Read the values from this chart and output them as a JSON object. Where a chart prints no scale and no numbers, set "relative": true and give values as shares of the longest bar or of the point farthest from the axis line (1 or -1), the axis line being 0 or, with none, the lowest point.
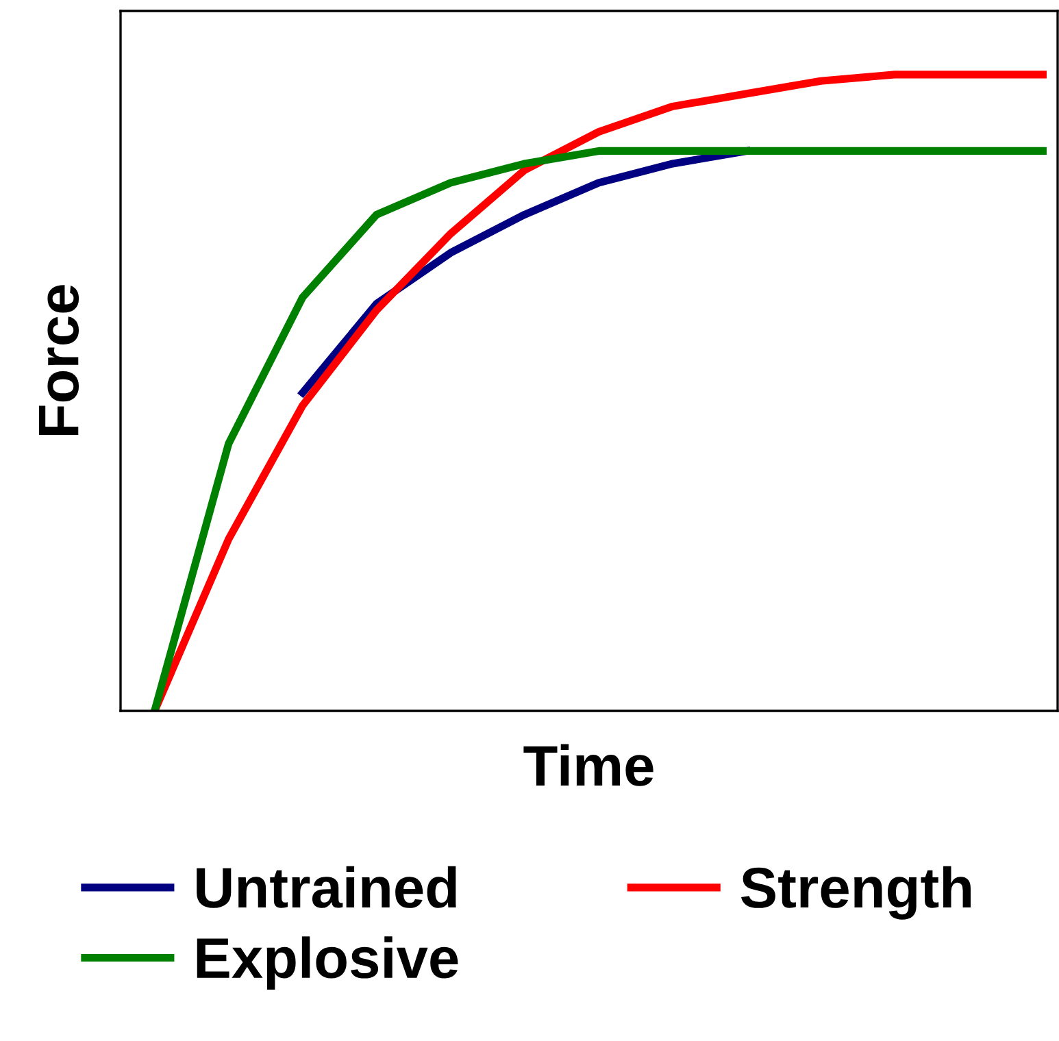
{
  "chart_data": {
    "type": "line",
    "xlabel": "Time",
    "ylabel": "Force",
    "relative": true,
    "grid": false,
    "legend": "bottom",
    "marker": "none",
    "line_style": "solid",
    "categories": [
      null,
      null,
      null,
      null,
      null,
      null,
      null,
      null,
      null,
      null,
      null,
      null,
      null
    ],
    "series": [
      {
        "name": "Untrained",
        "color": "#000080",
        "values": [
          null,
          null,
          0.5,
          0.64,
          0.72,
          0.78,
          0.83,
          0.86,
          0.88,
          null,
          null,
          null,
          null
        ]
      },
      {
        "name": "Strength",
        "color": "#ff0000",
        "values": [
          0,
          0.27,
          0.48,
          0.63,
          0.75,
          0.85,
          0.91,
          0.95,
          0.97,
          0.99,
          1,
          1,
          1
        ]
      },
      {
        "name": "Explosive",
        "color": "#008000",
        "values": [
          0,
          0.42,
          0.65,
          0.78,
          0.83,
          0.86,
          0.88,
          0.88,
          0.88,
          0.88,
          0.88,
          0.88,
          0.88
        ]
      }
    ]
  }
}
